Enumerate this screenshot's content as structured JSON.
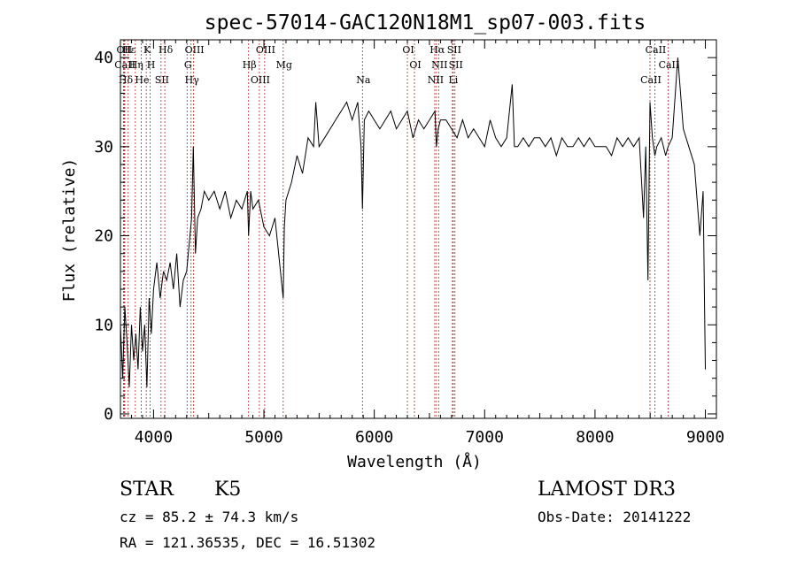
{
  "chart_data": {
    "type": "line",
    "title": "spec-57014-GAC120N18M1_sp07-003.fits",
    "xlabel": "Wavelength (Å)",
    "ylabel": "Flux (relative)",
    "xlim": [
      3700,
      9100
    ],
    "ylim": [
      -0.5,
      42
    ],
    "xticks": [
      4000,
      5000,
      6000,
      7000,
      8000,
      9000
    ],
    "yticks": [
      0,
      10,
      20,
      30,
      40
    ],
    "grid": false,
    "series": [
      {
        "name": "flux",
        "color": "#000000",
        "x": [
          3700,
          3720,
          3740,
          3760,
          3780,
          3800,
          3820,
          3840,
          3860,
          3880,
          3900,
          3920,
          3940,
          3960,
          3980,
          4000,
          4030,
          4060,
          4090,
          4120,
          4150,
          4180,
          4210,
          4240,
          4270,
          4300,
          4330,
          4345,
          4360,
          4380,
          4400,
          4430,
          4460,
          4500,
          4550,
          4600,
          4650,
          4700,
          4750,
          4800,
          4850,
          4861,
          4880,
          4900,
          4950,
          5000,
          5050,
          5100,
          5150,
          5175,
          5185,
          5200,
          5250,
          5300,
          5350,
          5400,
          5450,
          5470,
          5500,
          5550,
          5600,
          5650,
          5700,
          5750,
          5800,
          5850,
          5880,
          5893,
          5910,
          5950,
          6000,
          6050,
          6100,
          6150,
          6200,
          6250,
          6300,
          6350,
          6400,
          6450,
          6500,
          6550,
          6563,
          6580,
          6600,
          6650,
          6700,
          6750,
          6800,
          6850,
          6900,
          6950,
          7000,
          7050,
          7100,
          7150,
          7200,
          7250,
          7270,
          7300,
          7350,
          7400,
          7450,
          7500,
          7550,
          7600,
          7650,
          7700,
          7750,
          7800,
          7850,
          7900,
          7950,
          8000,
          8050,
          8100,
          8150,
          8200,
          8250,
          8300,
          8350,
          8400,
          8440,
          8460,
          8480,
          8498,
          8520,
          8542,
          8560,
          8600,
          8640,
          8662,
          8700,
          8750,
          8800,
          8850,
          8900,
          8950,
          8980,
          9000
        ],
        "values": [
          10,
          4,
          12,
          8,
          3,
          10,
          6,
          9,
          5,
          12,
          7,
          10,
          3,
          13,
          9,
          14,
          17,
          13,
          16,
          15,
          17,
          14,
          18,
          12,
          15,
          16,
          20,
          22,
          30,
          18,
          22,
          23,
          25,
          24,
          25,
          23,
          25,
          22,
          24,
          23,
          25,
          20,
          25,
          23,
          24,
          21,
          20,
          22,
          16,
          13,
          21,
          24,
          26,
          29,
          27,
          31,
          30,
          35,
          30,
          31,
          32,
          33,
          34,
          35,
          33,
          35,
          30,
          23,
          33,
          34,
          33,
          32,
          33,
          34,
          32,
          33,
          34,
          31,
          33,
          32,
          33,
          34,
          30,
          32,
          33,
          33,
          32,
          31,
          33,
          31,
          32,
          31,
          30,
          33,
          31,
          30,
          31,
          37,
          30,
          30,
          31,
          30,
          31,
          31,
          30,
          31,
          29,
          31,
          30,
          30,
          31,
          30,
          31,
          30,
          30,
          30,
          29,
          31,
          30,
          31,
          30,
          31,
          22,
          30,
          15,
          35,
          31,
          29,
          30,
          31,
          29,
          30,
          31,
          40,
          32,
          30,
          28,
          20,
          25,
          5
        ]
      }
    ],
    "lines": [
      {
        "name": "Hδ",
        "wavelength": 3740
      },
      {
        "name": "OII",
        "wavelength": 3727
      },
      {
        "name": "CaII",
        "wavelength": 3733
      },
      {
        "name": "Hε",
        "wavelength": 3770
      },
      {
        "name": "Hη",
        "wavelength": 3835
      },
      {
        "name": "K",
        "wavelength": 3934
      },
      {
        "name": "He",
        "wavelength": 3888
      },
      {
        "name": "SII",
        "wavelength": 4068
      },
      {
        "name": "H",
        "wavelength": 3969
      },
      {
        "name": "Hδ",
        "wavelength": 4102
      },
      {
        "name": "OIII",
        "wavelength": 4363
      },
      {
        "name": "Hγ",
        "wavelength": 4340
      },
      {
        "name": "G",
        "wavelength": 4304
      },
      {
        "name": "Hβ",
        "wavelength": 4861
      },
      {
        "name": "OIII",
        "wavelength": 4959
      },
      {
        "name": "OIII",
        "wavelength": 5007
      },
      {
        "name": "Mg",
        "wavelength": 5175
      },
      {
        "name": "Na",
        "wavelength": 5893
      },
      {
        "name": "OI",
        "wavelength": 6300
      },
      {
        "name": "OI",
        "wavelength": 6364
      },
      {
        "name": "Hα",
        "wavelength": 6563
      },
      {
        "name": "NII",
        "wavelength": 6548
      },
      {
        "name": "NII",
        "wavelength": 6583
      },
      {
        "name": "SII",
        "wavelength": 6716
      },
      {
        "name": "SII",
        "wavelength": 6731
      },
      {
        "name": "Li",
        "wavelength": 6708
      },
      {
        "name": "CaII",
        "wavelength": 8542
      },
      {
        "name": "CaII",
        "wavelength": 8498
      },
      {
        "name": "CaII",
        "wavelength": 8662
      }
    ]
  },
  "info": {
    "class": "STAR",
    "subclass": "K5",
    "survey": "LAMOST DR3",
    "cz": "cz = 85.2 ± 74.3 km/s",
    "obs_date": "Obs-Date: 20141222",
    "coords": "RA = 121.36535, DEC =  16.51302"
  }
}
